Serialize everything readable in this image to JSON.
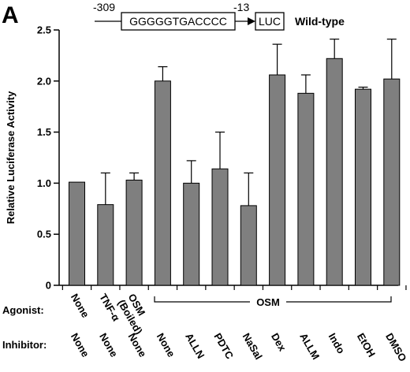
{
  "panel_letter": "A",
  "construct": {
    "start_position": "-309",
    "end_position": "-13",
    "sequence": "GGGGGTGACCCC",
    "reporter": "LUC",
    "label": "Wild-type"
  },
  "colors": {
    "bar_fill": "#7f7f7f",
    "bar_stroke": "#000000",
    "axis": "#000000"
  },
  "row_labels": {
    "agonist": "Agonist:",
    "inhibitor": "Inhibitor:"
  },
  "agonist_labels": [
    "None",
    "TNF-α",
    "OSM (Boiled)"
  ],
  "osm_group_label": "OSM",
  "chart_data": {
    "type": "bar",
    "ylabel": "Relative Luciferase Activity",
    "ylim": [
      0,
      2.5
    ],
    "yticks": [
      0,
      0.5,
      1.0,
      1.5,
      2.0,
      2.5
    ],
    "ytick_labels": [
      "0",
      "0.5",
      "1.0",
      "1.5",
      "2.0",
      "2.5"
    ],
    "grid": false,
    "legend": "none",
    "categories": [
      "None",
      "None",
      "None",
      "None",
      "ALLN",
      "PDTC",
      "NaSal",
      "Dex",
      "ALLM",
      "Indo",
      "EtOH",
      "DMSO"
    ],
    "agonists": [
      "None",
      "TNF-α",
      "OSM (Boiled)",
      "OSM",
      "OSM",
      "OSM",
      "OSM",
      "OSM",
      "OSM",
      "OSM",
      "OSM",
      "OSM"
    ],
    "values": [
      1.01,
      0.79,
      1.03,
      2.0,
      1.0,
      1.14,
      0.78,
      2.06,
      1.88,
      2.22,
      1.92,
      2.02
    ],
    "error_upper": [
      null,
      1.1,
      1.1,
      2.14,
      1.22,
      1.5,
      1.1,
      2.36,
      2.06,
      2.41,
      1.94,
      2.41
    ]
  }
}
